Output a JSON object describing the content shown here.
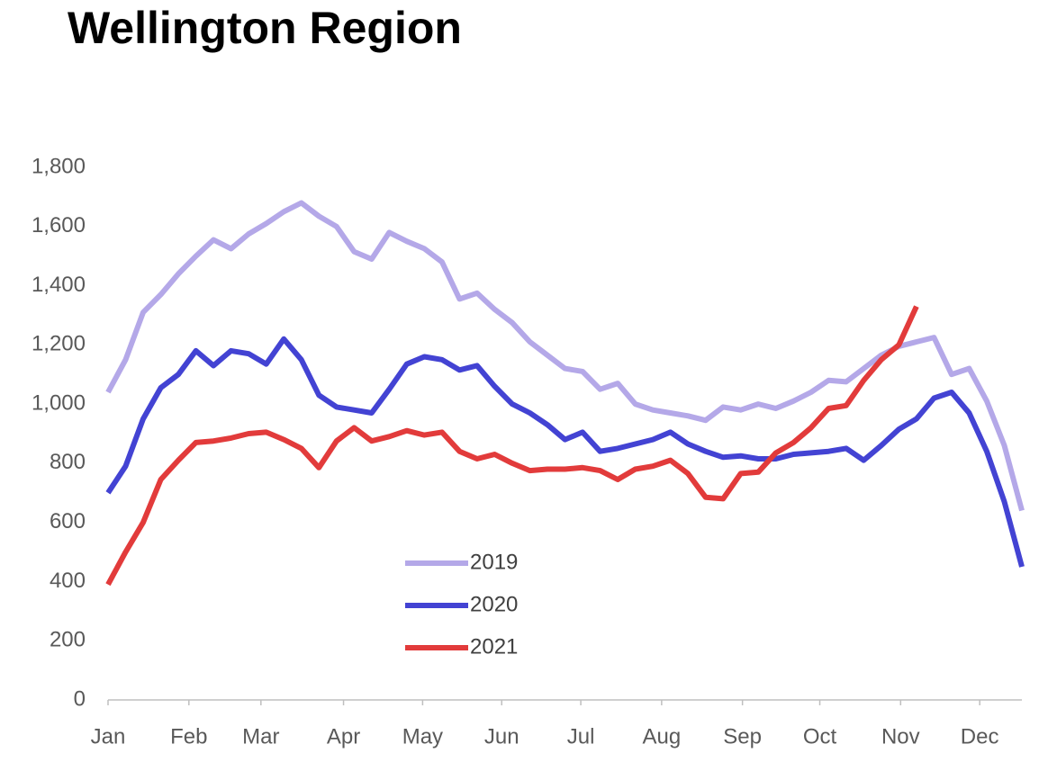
{
  "chart_data": {
    "type": "line",
    "title": "Wellington Region",
    "x": [
      0,
      1,
      2,
      3,
      4,
      5,
      6,
      7,
      8,
      9,
      10,
      11,
      12,
      13,
      14,
      15,
      16,
      17,
      18,
      19,
      20,
      21,
      22,
      23,
      24,
      25,
      26,
      27,
      28,
      29,
      30,
      31,
      32,
      33,
      34,
      35,
      36,
      37,
      38,
      39,
      40,
      41,
      42,
      43,
      44,
      45,
      46,
      47,
      48,
      49,
      50,
      51,
      52
    ],
    "xlim": [
      0,
      52
    ],
    "xticks": [
      {
        "value": 0,
        "label": "Jan"
      },
      {
        "value": 4.6,
        "label": "Feb"
      },
      {
        "value": 8.7,
        "label": "Mar"
      },
      {
        "value": 13.4,
        "label": "Apr"
      },
      {
        "value": 17.9,
        "label": "May"
      },
      {
        "value": 22.4,
        "label": "Jun"
      },
      {
        "value": 26.9,
        "label": "Jul"
      },
      {
        "value": 31.5,
        "label": "Aug"
      },
      {
        "value": 36.1,
        "label": "Sep"
      },
      {
        "value": 40.5,
        "label": "Oct"
      },
      {
        "value": 45.1,
        "label": "Nov"
      },
      {
        "value": 49.6,
        "label": "Dec"
      }
    ],
    "ylim": [
      0,
      1800
    ],
    "yticks": [
      0,
      200,
      400,
      600,
      800,
      {
        "value": 1000,
        "label": "1,000"
      },
      {
        "value": 1200,
        "label": "1,200"
      },
      {
        "value": 1400,
        "label": "1,400"
      },
      {
        "value": 1600,
        "label": "1,600"
      },
      {
        "value": 1800,
        "label": "1,800"
      }
    ],
    "grid": false,
    "series": [
      {
        "name": "2019",
        "color": "#b4a8e8",
        "values": [
          1040,
          1150,
          1310,
          1370,
          1440,
          1500,
          1555,
          1525,
          1575,
          1610,
          1650,
          1680,
          1635,
          1600,
          1515,
          1490,
          1580,
          1550,
          1525,
          1480,
          1355,
          1375,
          1320,
          1275,
          1210,
          1165,
          1120,
          1110,
          1050,
          1070,
          1000,
          980,
          970,
          960,
          945,
          990,
          980,
          1000,
          985,
          1010,
          1040,
          1080,
          1075,
          1120,
          1165,
          1195,
          1210,
          1225,
          1100,
          1120,
          1010,
          860,
          640
        ]
      },
      {
        "name": "2020",
        "color": "#4343d3",
        "values": [
          700,
          790,
          950,
          1055,
          1100,
          1180,
          1130,
          1180,
          1170,
          1135,
          1220,
          1150,
          1030,
          990,
          980,
          970,
          1050,
          1135,
          1160,
          1150,
          1115,
          1130,
          1060,
          1000,
          970,
          930,
          880,
          905,
          840,
          850,
          865,
          880,
          905,
          865,
          840,
          820,
          825,
          815,
          815,
          830,
          835,
          840,
          850,
          810,
          860,
          915,
          950,
          1020,
          1040,
          970,
          840,
          670,
          450
        ]
      },
      {
        "name": "2021",
        "color": "#e23b3b",
        "values": [
          390,
          500,
          600,
          745,
          810,
          870,
          875,
          885,
          900,
          905,
          880,
          850,
          785,
          875,
          920,
          875,
          890,
          910,
          895,
          905,
          840,
          815,
          830,
          800,
          775,
          780,
          780,
          785,
          775,
          745,
          780,
          790,
          810,
          765,
          685,
          680,
          765,
          770,
          835,
          870,
          920,
          985,
          995,
          1080,
          1150,
          1200,
          1330,
          null,
          null,
          null,
          null,
          null,
          null
        ]
      }
    ]
  }
}
